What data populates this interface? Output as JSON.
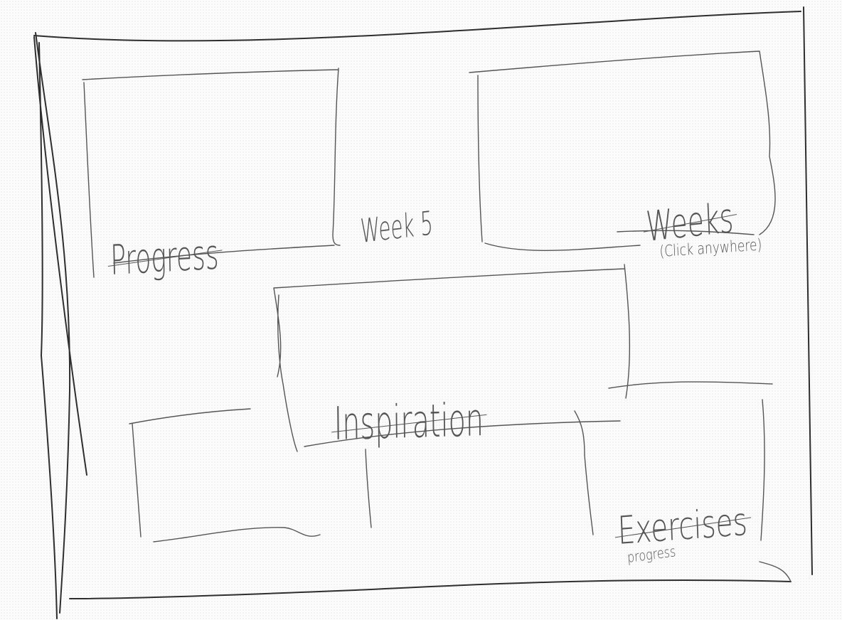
{
  "labels": {
    "progress": "Progress",
    "week_5": "Week 5",
    "weeks": "Weeks",
    "click_anywhere": "(Click anywhere)",
    "inspiration": "Inspiration",
    "exercises": "Exercises",
    "exercises_sub": "progress"
  },
  "colors": {
    "ink_dark": "#2e2e2e",
    "ink": "#555555",
    "paper": "#fbfbfb"
  }
}
